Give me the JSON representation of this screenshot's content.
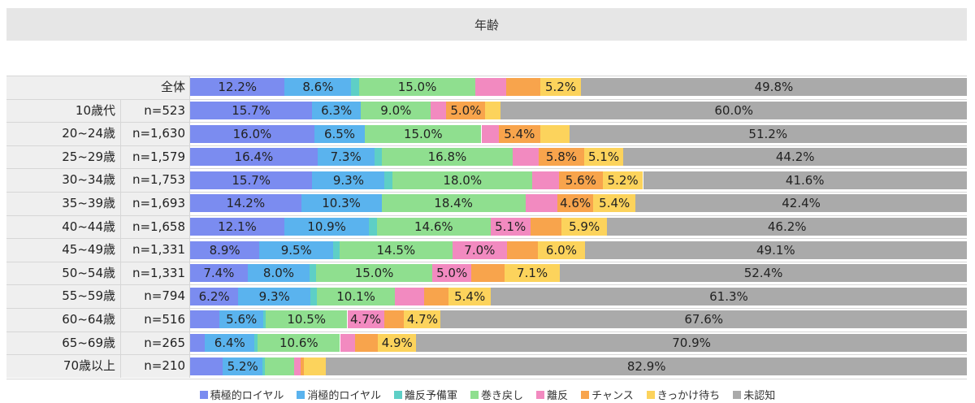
{
  "chart_data": {
    "type": "bar",
    "orientation": "horizontal",
    "stacked": true,
    "title": "年齢",
    "xlim": [
      0,
      100
    ],
    "grid": false,
    "legend_position": "bottom",
    "rows": [
      {
        "label": "全体",
        "n": "",
        "values": [
          12.2,
          8.6,
          1.0,
          15.0,
          4.0,
          4.4,
          5.2,
          49.8
        ]
      },
      {
        "label": "10歳代",
        "n": "n=523",
        "values": [
          15.7,
          6.3,
          0.0,
          9.0,
          2.0,
          5.0,
          2.0,
          60.0
        ]
      },
      {
        "label": "20~24歳",
        "n": "n=1,630",
        "values": [
          16.0,
          6.5,
          0.0,
          15.0,
          2.2,
          5.4,
          3.7,
          51.2
        ]
      },
      {
        "label": "25~29歳",
        "n": "n=1,579",
        "values": [
          16.4,
          7.3,
          1.0,
          16.8,
          3.4,
          5.8,
          5.1,
          44.2
        ]
      },
      {
        "label": "30~34歳",
        "n": "n=1,753",
        "values": [
          15.7,
          9.3,
          1.0,
          18.0,
          3.4,
          5.6,
          5.2,
          41.6
        ]
      },
      {
        "label": "35~39歳",
        "n": "n=1,693",
        "values": [
          14.2,
          10.3,
          0.0,
          18.4,
          4.1,
          4.6,
          5.4,
          42.4
        ]
      },
      {
        "label": "40~44歳",
        "n": "n=1,658",
        "values": [
          12.1,
          10.9,
          1.0,
          14.6,
          5.1,
          4.0,
          5.9,
          46.2
        ]
      },
      {
        "label": "45~49歳",
        "n": "n=1,331",
        "values": [
          8.9,
          9.5,
          0.8,
          14.5,
          7.0,
          4.0,
          6.0,
          49.1
        ]
      },
      {
        "label": "50~54歳",
        "n": "n=1,331",
        "values": [
          7.4,
          8.0,
          0.8,
          15.0,
          5.0,
          4.3,
          7.1,
          52.4
        ]
      },
      {
        "label": "55~59歳",
        "n": "n=794",
        "values": [
          6.2,
          9.3,
          0.8,
          10.1,
          3.7,
          3.2,
          5.4,
          61.3
        ]
      },
      {
        "label": "60~64歳",
        "n": "n=516",
        "values": [
          3.8,
          5.6,
          0.3,
          10.5,
          4.7,
          2.6,
          4.7,
          67.6
        ]
      },
      {
        "label": "65~69歳",
        "n": "n=265",
        "values": [
          1.9,
          6.4,
          0.4,
          10.6,
          1.9,
          3.0,
          4.9,
          70.9
        ]
      },
      {
        "label": "70歳以上",
        "n": "n=210",
        "values": [
          4.2,
          5.2,
          0.3,
          3.8,
          0.8,
          0.4,
          2.9,
          82.9
        ]
      }
    ],
    "series": [
      {
        "name": "積極的ロイヤル",
        "color": "#7b8cf0"
      },
      {
        "name": "消極的ロイヤル",
        "color": "#5ab3ee"
      },
      {
        "name": "離反予備軍",
        "color": "#5ecfc6"
      },
      {
        "name": "巻き戻し",
        "color": "#8fdf8f"
      },
      {
        "name": "離反",
        "color": "#f28ac0"
      },
      {
        "name": "チャンス",
        "color": "#f8a44c"
      },
      {
        "name": "きっかけ待ち",
        "color": "#fcd35c"
      },
      {
        "name": "未認知",
        "color": "#aaaaaa"
      }
    ],
    "label_threshold": 4.5
  }
}
